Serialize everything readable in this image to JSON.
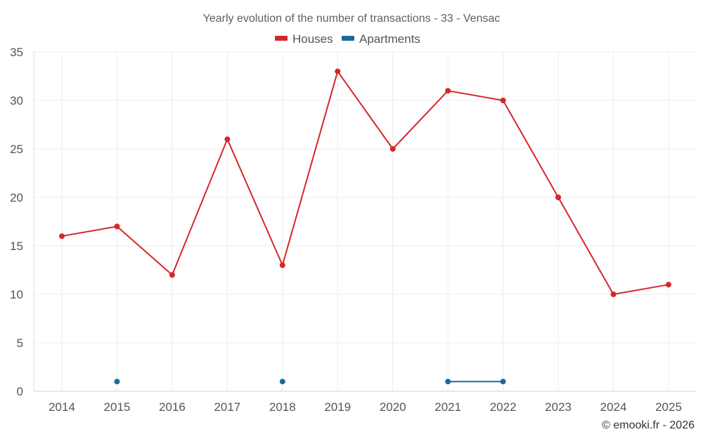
{
  "chart_data": {
    "type": "line",
    "title": "Yearly evolution of the number of transactions - 33 - Vensac",
    "categories": [
      "2014",
      "2015",
      "2016",
      "2017",
      "2018",
      "2019",
      "2020",
      "2021",
      "2022",
      "2023",
      "2024",
      "2025"
    ],
    "series": [
      {
        "name": "Houses",
        "color": "#d62728",
        "values": [
          16,
          17,
          12,
          26,
          13,
          33,
          25,
          31,
          30,
          20,
          10,
          11
        ]
      },
      {
        "name": "Apartments",
        "color": "#1f6a9a",
        "values": [
          null,
          1,
          null,
          null,
          1,
          null,
          null,
          1,
          1,
          null,
          null,
          null
        ]
      }
    ],
    "yticks": [
      0,
      5,
      10,
      15,
      20,
      25,
      30,
      35
    ],
    "ylim": [
      0,
      35
    ],
    "xlabel": "",
    "ylabel": "",
    "grid": true,
    "legend_position": "top-center"
  },
  "credit": "© emooki.fr - 2026"
}
